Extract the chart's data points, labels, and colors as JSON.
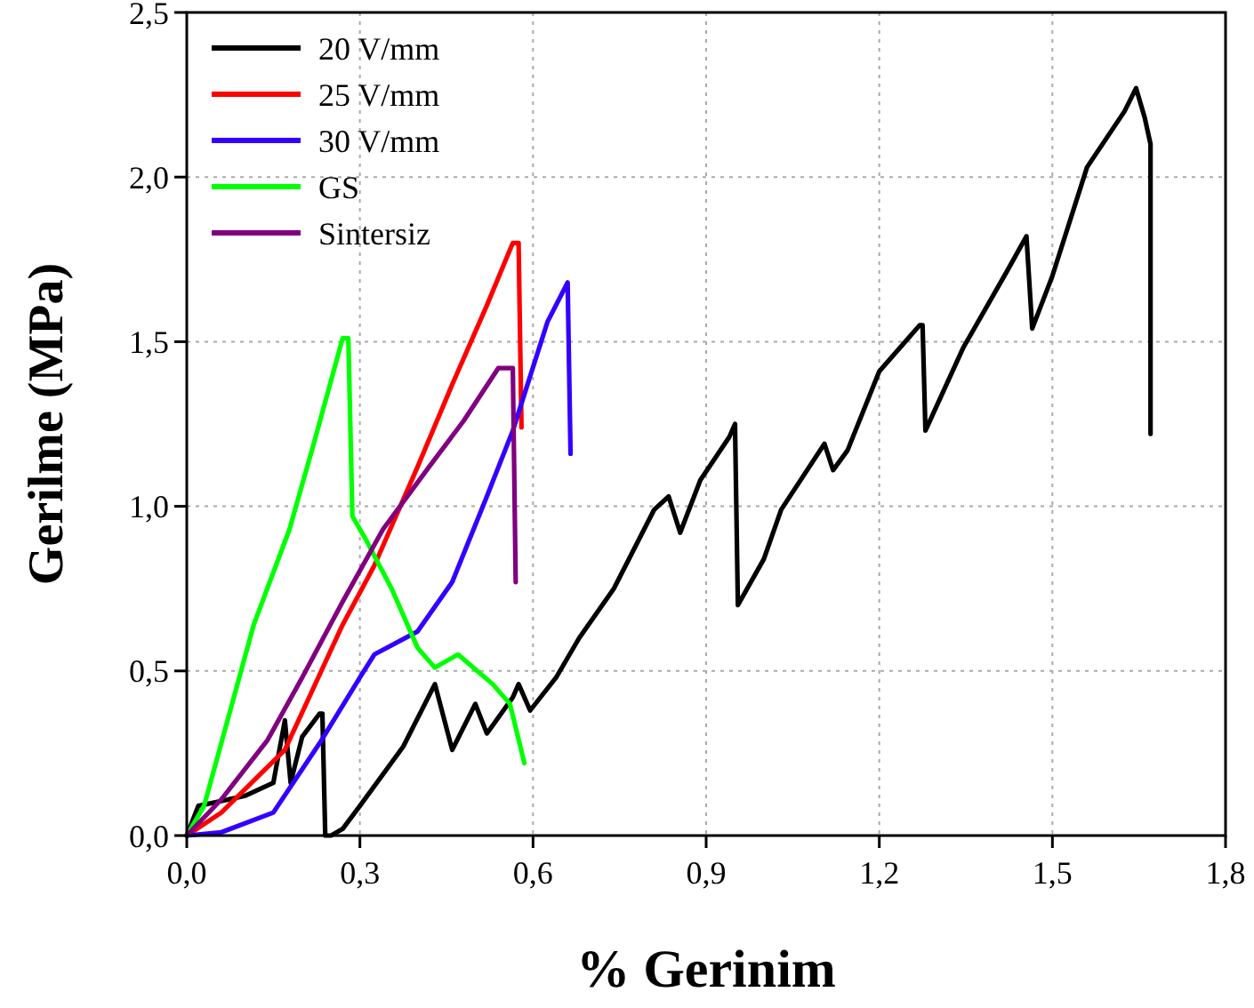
{
  "chart_data": {
    "type": "line",
    "xlabel": "% Gerinim",
    "ylabel": "Gerilme (MPa)",
    "xlim": [
      0,
      1.8
    ],
    "ylim": [
      0,
      2.5
    ],
    "xticks": [
      {
        "value": 0,
        "label": "0,0"
      },
      {
        "value": 0.3,
        "label": "0,3"
      },
      {
        "value": 0.6,
        "label": "0,6"
      },
      {
        "value": 0.9,
        "label": "0,9"
      },
      {
        "value": 1.2,
        "label": "1,2"
      },
      {
        "value": 1.5,
        "label": "1,5"
      },
      {
        "value": 1.8,
        "label": "1,8"
      }
    ],
    "yticks": [
      {
        "value": 0,
        "label": "0,0"
      },
      {
        "value": 0.5,
        "label": "0,5"
      },
      {
        "value": 1,
        "label": "1,0"
      },
      {
        "value": 1.5,
        "label": "1,5"
      },
      {
        "value": 2,
        "label": "2,0"
      },
      {
        "value": 2.5,
        "label": "2,5"
      }
    ],
    "grid": true,
    "legend": "top left",
    "marker": "none",
    "line_style": "solid",
    "series": [
      {
        "name": "20 V/mm",
        "color": "#000000",
        "x": [
          0,
          0.02,
          0.1,
          0.15,
          0.17,
          0.18,
          0.2,
          0.23,
          0.235,
          0.24,
          0.25,
          0.27,
          0.3,
          0.375,
          0.43,
          0.46,
          0.5,
          0.52,
          0.565,
          0.575,
          0.595,
          0.64,
          0.68,
          0.74,
          0.81,
          0.835,
          0.855,
          0.89,
          0.94,
          0.95,
          0.955,
          1.0,
          1.03,
          1.105,
          1.12,
          1.145,
          1.2,
          1.27,
          1.275,
          1.28,
          1.345,
          1.42,
          1.455,
          1.465,
          1.5,
          1.56,
          1.625,
          1.645,
          1.66,
          1.67,
          1.67
        ],
        "values": [
          0,
          0.09,
          0.12,
          0.16,
          0.35,
          0.16,
          0.3,
          0.37,
          0.37,
          0,
          0,
          0.02,
          0.09,
          0.27,
          0.46,
          0.26,
          0.4,
          0.31,
          0.42,
          0.46,
          0.38,
          0.48,
          0.6,
          0.75,
          0.99,
          1.03,
          0.92,
          1.08,
          1.21,
          1.25,
          0.7,
          0.84,
          0.99,
          1.19,
          1.11,
          1.17,
          1.41,
          1.55,
          1.55,
          1.23,
          1.48,
          1.71,
          1.82,
          1.54,
          1.7,
          2.03,
          2.2,
          2.27,
          2.18,
          2.1,
          1.22
        ]
      },
      {
        "name": "25 V/mm",
        "color": "#ff0000",
        "x": [
          0,
          0.06,
          0.17,
          0.27,
          0.325,
          0.4,
          0.46,
          0.52,
          0.565,
          0.575,
          0.58
        ],
        "values": [
          0,
          0.07,
          0.26,
          0.64,
          0.82,
          1.12,
          1.37,
          1.61,
          1.8,
          1.8,
          1.24
        ]
      },
      {
        "name": "30 V/mm",
        "color": "#3300ff",
        "x": [
          0,
          0.06,
          0.15,
          0.23,
          0.3,
          0.325,
          0.4,
          0.46,
          0.52,
          0.565,
          0.625,
          0.66,
          0.665
        ],
        "values": [
          0,
          0.01,
          0.07,
          0.28,
          0.48,
          0.55,
          0.62,
          0.77,
          1.03,
          1.23,
          1.56,
          1.68,
          1.16
        ]
      },
      {
        "name": "GS",
        "color": "#00ff00",
        "x": [
          0,
          0.03,
          0.116,
          0.178,
          0.22,
          0.27,
          0.28,
          0.287,
          0.31,
          0.355,
          0.4,
          0.43,
          0.47,
          0.53,
          0.56,
          0.585
        ],
        "values": [
          0,
          0.09,
          0.64,
          0.93,
          1.19,
          1.51,
          1.51,
          0.97,
          0.9,
          0.75,
          0.57,
          0.51,
          0.55,
          0.46,
          0.4,
          0.22
        ]
      },
      {
        "name": "Sintersiz",
        "color": "#800080",
        "x": [
          0,
          0.06,
          0.14,
          0.2,
          0.27,
          0.34,
          0.42,
          0.48,
          0.54,
          0.565,
          0.57
        ],
        "values": [
          0,
          0.11,
          0.29,
          0.48,
          0.71,
          0.93,
          1.12,
          1.26,
          1.42,
          1.42,
          0.77
        ]
      }
    ]
  }
}
